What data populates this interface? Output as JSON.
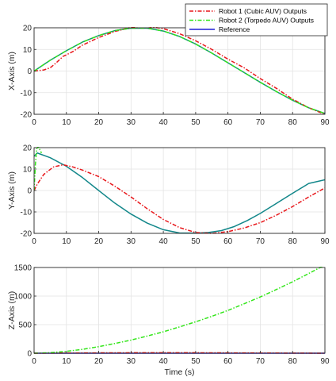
{
  "colors": {
    "robot1": "#e8171b",
    "robot2": "#33e61a",
    "reference": "#1f1fd6",
    "reference_xy": "#12878a",
    "grid": "#e3e3e3",
    "axis": "#262626"
  },
  "legend": {
    "placement": "top-right",
    "entries": [
      {
        "label": "Robot 1 (Cubic AUV) Outputs",
        "style": "dash-dot",
        "color": "#e8171b"
      },
      {
        "label": "Robot 2 (Torpedo AUV) Outputs",
        "style": "dash-dot",
        "color": "#33e61a"
      },
      {
        "label": "Reference",
        "style": "solid",
        "color": "#1f1fd6"
      }
    ]
  },
  "chart_data": [
    {
      "type": "line",
      "title": "",
      "xlabel": "",
      "ylabel": "X-Axis (m)",
      "xlim": [
        0,
        90
      ],
      "ylim": [
        -20,
        20
      ],
      "xticks": [
        "0",
        "10",
        "20",
        "30",
        "40",
        "50",
        "60",
        "70",
        "80",
        "90"
      ],
      "yticks": [
        "-20",
        "-10",
        "0",
        "10",
        "20"
      ],
      "grid": true,
      "series": [
        {
          "name": "Reference",
          "color": "#12878a",
          "style": "solid",
          "x": [
            0,
            5,
            10,
            15,
            20,
            25,
            30,
            35,
            40,
            45,
            50,
            55,
            60,
            65,
            70,
            75,
            80,
            85,
            90
          ],
          "y": [
            0,
            5,
            9.4,
            13.4,
            16.4,
            18.7,
            19.8,
            19.8,
            18.5,
            16.0,
            12.5,
            8.3,
            3.8,
            -0.7,
            -5.2,
            -9.5,
            -13.5,
            -17.0,
            -19.6
          ]
        },
        {
          "name": "Robot 1 (Cubic AUV) Outputs",
          "color": "#e8171b",
          "style": "dash-dot",
          "x": [
            0,
            3,
            5,
            7,
            9,
            10,
            12,
            15,
            20,
            25,
            30,
            33,
            35,
            40,
            45,
            50,
            55,
            60,
            65,
            70,
            75,
            80,
            85,
            90
          ],
          "y": [
            0,
            0.5,
            1.5,
            4,
            6.8,
            7.5,
            9,
            12,
            15.5,
            18.3,
            20.2,
            20.8,
            20.7,
            19.6,
            17.3,
            14,
            10,
            5.5,
            1.5,
            -3.5,
            -8,
            -13,
            -17,
            -20
          ]
        },
        {
          "name": "Robot 2 (Torpedo AUV) Outputs",
          "color": "#33e61a",
          "style": "dash-dot",
          "x": [
            0,
            5,
            10,
            15,
            20,
            25,
            30,
            35,
            40,
            45,
            50,
            55,
            60,
            65,
            70,
            75,
            80,
            85,
            90
          ],
          "y": [
            0,
            5,
            9.4,
            13.4,
            16.4,
            18.7,
            19.8,
            19.8,
            18.5,
            16.0,
            12.5,
            8.3,
            3.8,
            -0.7,
            -5.2,
            -9.5,
            -13.5,
            -17.0,
            -19.6
          ]
        }
      ]
    },
    {
      "type": "line",
      "title": "",
      "xlabel": "",
      "ylabel": "Y-Axis (m)",
      "xlim": [
        0,
        90
      ],
      "ylim": [
        -20,
        20
      ],
      "xticks": [
        "0",
        "10",
        "20",
        "30",
        "40",
        "50",
        "60",
        "70",
        "80",
        "90"
      ],
      "yticks": [
        "-20",
        "-10",
        "0",
        "10",
        "20"
      ],
      "grid": true,
      "series": [
        {
          "name": "Reference",
          "color": "#12878a",
          "style": "solid",
          "x": [
            0,
            1,
            5,
            10,
            15,
            20,
            25,
            30,
            35,
            40,
            45,
            50,
            54,
            58,
            62,
            66,
            70,
            75,
            80,
            85,
            90
          ],
          "y": [
            16,
            17.5,
            15.3,
            11.3,
            6.0,
            0.0,
            -5.9,
            -11.0,
            -15.2,
            -18.3,
            -19.8,
            -19.9,
            -19.6,
            -18.7,
            -16.8,
            -14.0,
            -10.7,
            -6.0,
            -1.3,
            3.3,
            5.0
          ]
        },
        {
          "name": "Robot 1 (Cubic AUV) Outputs",
          "color": "#e8171b",
          "style": "dash-dot",
          "x": [
            0,
            1,
            3,
            6,
            9,
            12,
            15,
            20,
            25,
            30,
            35,
            40,
            45,
            50,
            55,
            60,
            65,
            70,
            75,
            80,
            85,
            90
          ],
          "y": [
            0,
            3,
            7.5,
            11,
            12,
            11,
            9.5,
            6.5,
            2,
            -3,
            -8.5,
            -13.5,
            -17.3,
            -19.6,
            -20,
            -19.2,
            -17.5,
            -15,
            -11.5,
            -7.5,
            -3,
            1.2
          ]
        },
        {
          "name": "Robot 2 (Torpedo AUV) Outputs",
          "color": "#33e61a",
          "style": "dash-dot",
          "x": [
            0,
            0.4,
            0.8,
            1.3,
            1.8,
            2.3
          ],
          "y": [
            0,
            12,
            19.5,
            20.5,
            19,
            17.5
          ]
        }
      ]
    },
    {
      "type": "line",
      "title": "",
      "xlabel": "Time (s)",
      "ylabel": "Z-Axis (m)",
      "xlim": [
        0,
        90
      ],
      "ylim": [
        0,
        1500
      ],
      "xticks": [
        "0",
        "10",
        "20",
        "30",
        "40",
        "50",
        "60",
        "70",
        "80",
        "90"
      ],
      "yticks": [
        "0",
        "500",
        "1000",
        "1500"
      ],
      "grid": true,
      "series": [
        {
          "name": "Reference",
          "color": "#1f1fd6",
          "style": "solid",
          "x": [
            0,
            10,
            20,
            30,
            40,
            50,
            60,
            70,
            80,
            90
          ],
          "y": [
            0,
            0,
            0,
            0,
            0,
            0,
            0,
            0,
            0,
            0
          ]
        },
        {
          "name": "Robot 1 (Cubic AUV) Outputs",
          "color": "#e8171b",
          "style": "dash-dot",
          "x": [
            0,
            10,
            20,
            30,
            40,
            50,
            60,
            70,
            80,
            90
          ],
          "y": [
            0,
            3,
            6,
            8,
            9,
            8,
            6,
            4,
            2,
            0
          ]
        },
        {
          "name": "Robot 2 (Torpedo AUV) Outputs",
          "color": "#33e61a",
          "style": "dash-dot",
          "x": [
            0,
            5,
            10,
            15,
            20,
            25,
            30,
            35,
            40,
            45,
            50,
            55,
            60,
            65,
            70,
            75,
            80,
            85,
            90
          ],
          "y": [
            0,
            10,
            33,
            68,
            115,
            170,
            230,
            300,
            375,
            460,
            550,
            645,
            750,
            865,
            985,
            1115,
            1250,
            1395,
            1545
          ]
        }
      ]
    }
  ]
}
